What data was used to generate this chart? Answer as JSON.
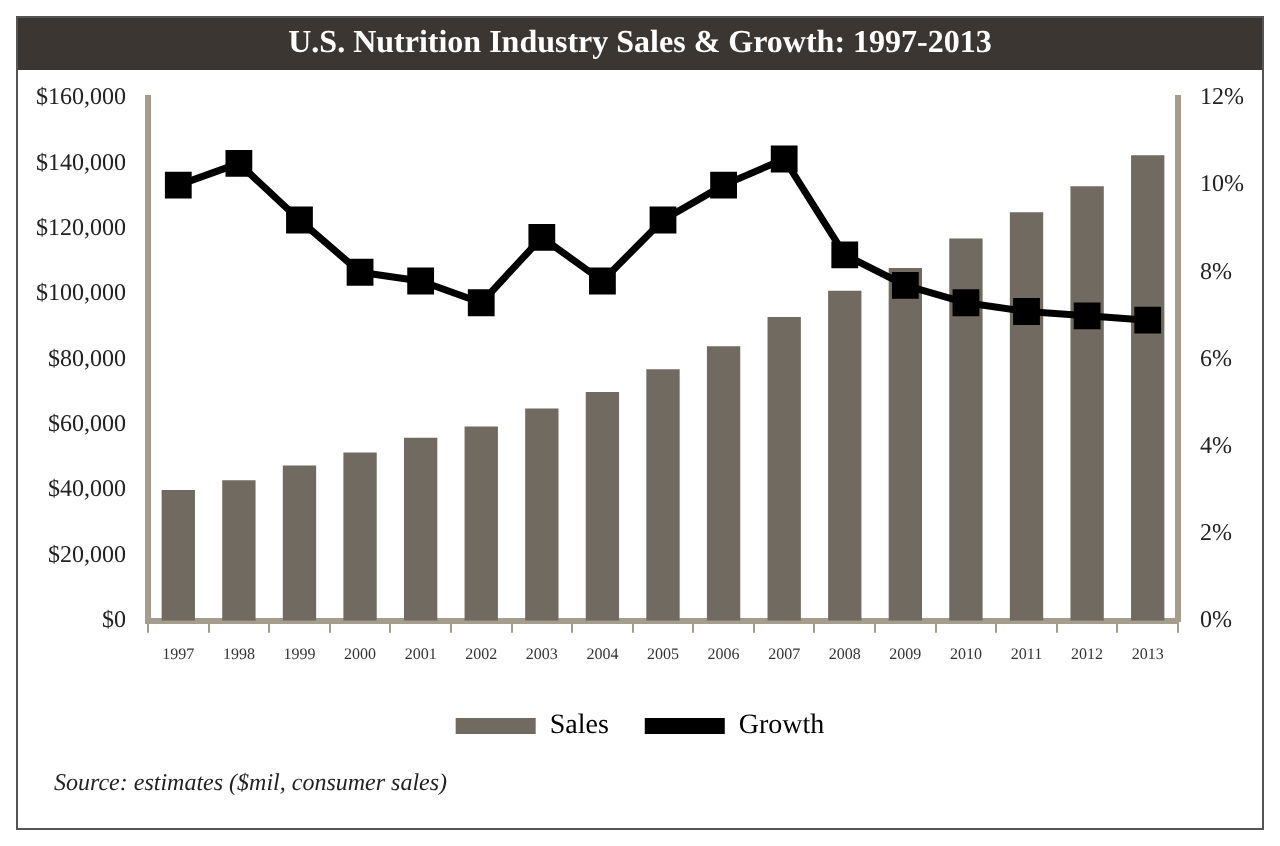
{
  "chart_data": {
    "type": "bar",
    "title": "U.S. Nutrition Industry Sales & Growth: 1997-2013",
    "categories": [
      "1997",
      "1998",
      "1999",
      "2000",
      "2001",
      "2002",
      "2003",
      "2004",
      "2005",
      "2006",
      "2007",
      "2008",
      "2009",
      "2010",
      "2011",
      "2012",
      "2013"
    ],
    "series": [
      {
        "name": "Sales",
        "color": "#706a60",
        "values": [
          40000,
          43000,
          47500,
          51500,
          56000,
          59500,
          65000,
          70000,
          77000,
          84000,
          93000,
          101000,
          108000,
          117000,
          125000,
          133000,
          142500
        ]
      },
      {
        "name": "Growth",
        "type": "line",
        "axis": "y2",
        "color": "#000000",
        "values": [
          10.0,
          10.5,
          9.2,
          8.0,
          7.8,
          7.3,
          8.8,
          7.8,
          9.2,
          10.0,
          10.6,
          8.4,
          7.7,
          7.3,
          7.1,
          7.0,
          6.9
        ]
      }
    ],
    "ylim": [
      0,
      160000
    ],
    "yticks": [
      {
        "value": 0,
        "label": "$0"
      },
      {
        "value": 20000,
        "label": "$20,000"
      },
      {
        "value": 40000,
        "label": "$40,000"
      },
      {
        "value": 60000,
        "label": "$60,000"
      },
      {
        "value": 80000,
        "label": "$80,000"
      },
      {
        "value": 100000,
        "label": "$100,000"
      },
      {
        "value": 120000,
        "label": "$120,000"
      },
      {
        "value": 140000,
        "label": "$140,000"
      },
      {
        "value": 160000,
        "label": "$160,000"
      }
    ],
    "y2lim": [
      0,
      12
    ],
    "y2ticks": [
      {
        "value": 0,
        "label": "0%"
      },
      {
        "value": 2,
        "label": "2%"
      },
      {
        "value": 4,
        "label": "4%"
      },
      {
        "value": 6,
        "label": "6%"
      },
      {
        "value": 8,
        "label": "8%"
      },
      {
        "value": 10,
        "label": "10%"
      },
      {
        "value": 12,
        "label": "12%"
      }
    ],
    "grid": false,
    "legend": "bottom",
    "marker": "square",
    "line_style": "solid",
    "annotations": [
      "Source: estimates ($mil, consumer sales)"
    ]
  }
}
